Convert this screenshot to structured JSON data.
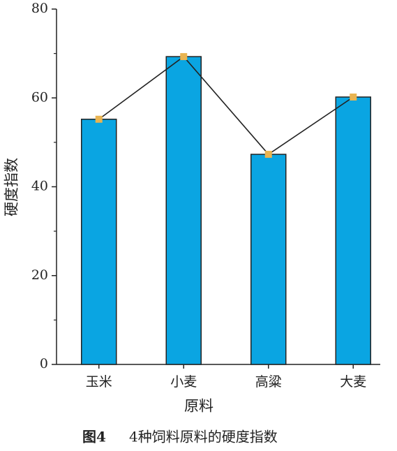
{
  "chart_data": {
    "type": "bar",
    "xlabel": "原料",
    "ylabel": "硬度指数",
    "figure_label": "图4",
    "caption": "4种饲料原料的硬度指数",
    "categories": [
      "玉米",
      "小麦",
      "高粱",
      "大麦"
    ],
    "values": [
      55.2,
      69.3,
      47.3,
      60.2
    ],
    "color": "#0aa5e2",
    "line_color": "#222222",
    "marker_color": "#e9b451",
    "ylim": [
      0,
      80
    ],
    "yticks": [
      0,
      20,
      40,
      60,
      80
    ],
    "minor_yticks": [
      10,
      30,
      50,
      70
    ]
  }
}
